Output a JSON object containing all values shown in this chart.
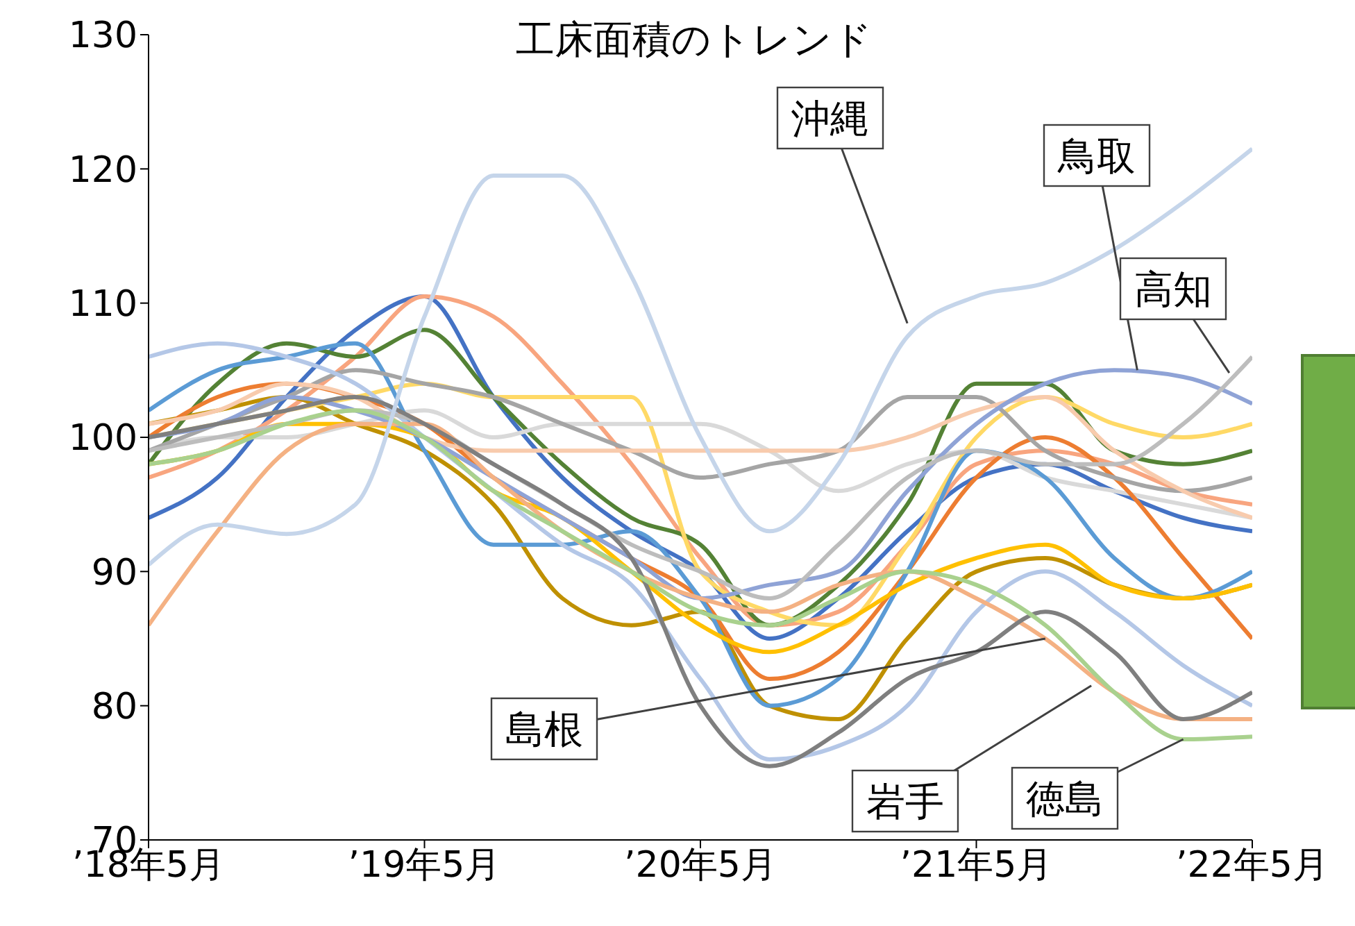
{
  "chart_data": {
    "type": "line",
    "title": "工床面積のトレンド",
    "x": [
      "2018-05",
      "2018-08",
      "2018-11",
      "2019-02",
      "2019-05",
      "2019-08",
      "2019-11",
      "2020-02",
      "2020-05",
      "2020-08",
      "2020-11",
      "2021-02",
      "2021-05",
      "2021-08",
      "2021-11",
      "2022-02",
      "2022-05"
    ],
    "xlim": [
      "2018-05",
      "2022-05"
    ],
    "xticks": [
      {
        "value": "2018-05",
        "label": "’18年5月"
      },
      {
        "value": "2019-05",
        "label": "’19年5月"
      },
      {
        "value": "2020-05",
        "label": "’20年5月"
      },
      {
        "value": "2021-05",
        "label": "’21年5月"
      },
      {
        "value": "2022-05",
        "label": "’22年5月"
      }
    ],
    "ylim": [
      70,
      130
    ],
    "yticks": [
      70,
      80,
      90,
      100,
      110,
      120,
      130
    ],
    "marker": "none",
    "line_style": "solid",
    "series": [
      {
        "color": "#4472c4",
        "values": [
          94,
          97,
          103,
          108,
          110.5,
          103,
          97,
          93,
          90,
          85,
          88,
          93,
          97,
          98,
          96,
          94,
          93
        ]
      },
      {
        "color": "#f8a57f",
        "values": [
          97,
          99,
          102,
          106,
          110.5,
          109,
          104,
          98,
          91,
          86,
          87,
          92,
          98,
          99,
          98,
          96,
          95
        ]
      },
      {
        "color": "#548235",
        "values": [
          98,
          104,
          107,
          106,
          108,
          103,
          98,
          94,
          92,
          86,
          89,
          95,
          104,
          104,
          99,
          98,
          99
        ]
      },
      {
        "color": "#bf9000",
        "values": [
          101,
          102,
          103,
          101,
          99,
          95,
          88,
          86,
          87,
          80,
          79,
          85,
          90,
          91,
          89,
          88,
          89
        ]
      },
      {
        "color": "#ffd966",
        "values": [
          100,
          101,
          102,
          103,
          104,
          103,
          103,
          103,
          90,
          87,
          86,
          92,
          100,
          103,
          101,
          100,
          101
        ]
      },
      {
        "color": "#d9d9d9",
        "values": [
          99,
          100,
          100,
          101,
          102,
          100,
          101,
          101,
          101,
          99,
          96,
          98,
          99,
          97,
          96,
          95,
          94
        ]
      },
      {
        "color": "#ed7d31",
        "values": [
          100,
          103,
          104,
          103,
          101,
          97,
          94,
          91,
          88,
          82,
          84,
          90,
          97,
          100,
          97,
          91,
          85
        ]
      },
      {
        "color": "#5b9bd5",
        "values": [
          102,
          105,
          106,
          107,
          99,
          92,
          92,
          93,
          88,
          80,
          82,
          90,
          99,
          97,
          91,
          88,
          90
        ]
      },
      {
        "color": "#ffc000",
        "values": [
          98,
          99,
          101,
          101,
          100,
          96,
          94,
          90,
          86,
          84,
          86,
          89,
          91,
          92,
          89,
          88,
          89
        ]
      },
      {
        "color": "#a5a5a5",
        "values": [
          99,
          101,
          103,
          105,
          104,
          103,
          101,
          99,
          97,
          98,
          99,
          103,
          103,
          99,
          97,
          96,
          97
        ]
      },
      {
        "color": "#f8cbad",
        "values": [
          101,
          102,
          104,
          103,
          100,
          99,
          99,
          99,
          99,
          99,
          99,
          100,
          102,
          103,
          99,
          96,
          94
        ]
      },
      {
        "color": "#b4c7e7",
        "values": [
          106,
          107,
          106,
          104,
          100,
          96,
          92,
          89,
          82,
          76,
          77,
          80,
          87,
          90,
          87,
          83,
          80
        ]
      },
      {
        "color": "#8fa3d6",
        "values": [
          100,
          101,
          103,
          102,
          100,
          97,
          94,
          91,
          88,
          89,
          90,
          96,
          101,
          104,
          105,
          104.5,
          102.5
        ]
      },
      {
        "color": "#bdbdbd",
        "values": [
          99,
          100,
          101,
          102,
          101,
          98,
          95,
          92,
          90,
          88,
          92,
          97,
          99,
          98,
          98,
          101,
          106
        ]
      },
      {
        "color": "#f4b183",
        "values": [
          86,
          93,
          99,
          101,
          101,
          97,
          93,
          90,
          88,
          87,
          89,
          90,
          88,
          85,
          81,
          79,
          79
        ]
      },
      {
        "color": "#7f7f7f",
        "values": [
          100,
          101,
          102,
          103,
          101,
          98,
          95,
          91,
          80,
          75.5,
          78,
          82,
          84,
          87,
          84,
          79,
          81
        ]
      },
      {
        "color": "#a9d18e",
        "values": [
          98,
          99,
          101,
          102,
          100,
          96,
          93,
          90,
          87,
          86,
          88,
          90,
          89,
          86,
          81,
          77.5,
          77.7
        ]
      },
      {
        "color": "#c5d5ea",
        "values": [
          90.5,
          93.5,
          92.8,
          95,
          109,
          119.5,
          119.5,
          112,
          100,
          93,
          98,
          107.5,
          110.5,
          111.5,
          114,
          117.5,
          121.5
        ]
      }
    ],
    "annotations": [
      {
        "text": "沖縄",
        "x": "2021-02",
        "y": 108.5
      },
      {
        "text": "鳥取",
        "x": "2021-12",
        "y": 105
      },
      {
        "text": "高知",
        "x": "2022-04",
        "y": 104.8
      },
      {
        "text": "島根",
        "x": "2021-08",
        "y": 85
      },
      {
        "text": "岩手",
        "x": "2021-10",
        "y": 81.5
      },
      {
        "text": "徳島",
        "x": "2022-02",
        "y": 77.5
      }
    ]
  }
}
